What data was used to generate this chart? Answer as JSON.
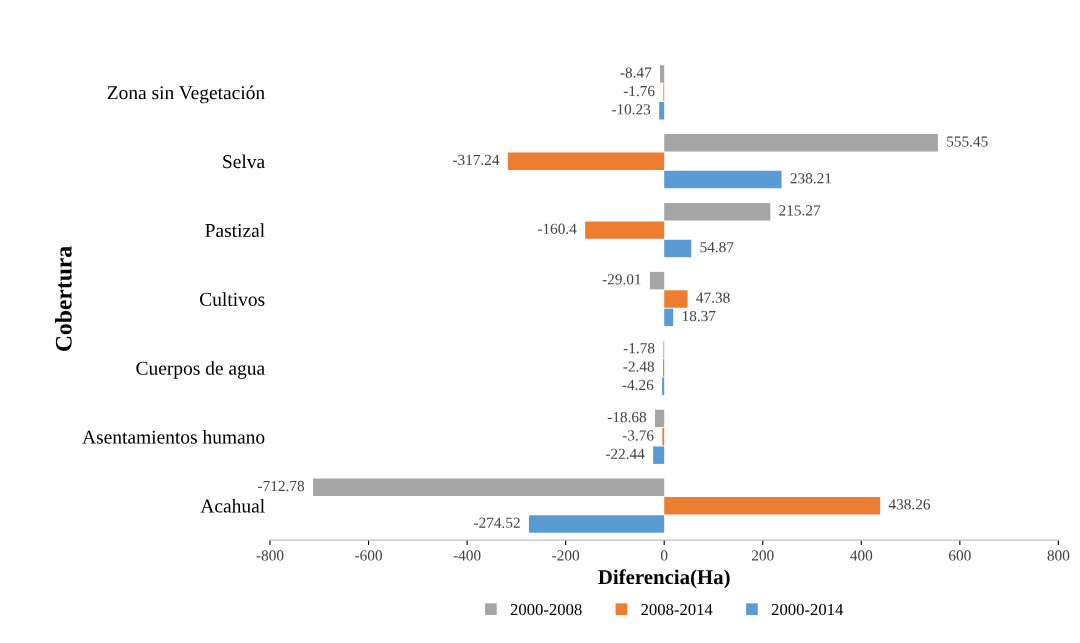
{
  "chart_data": {
    "type": "bar",
    "orientation": "horizontal",
    "xlabel": "Diferencia(Ha)",
    "ylabel": "Cobertura",
    "categories": [
      "Zona sin Vegetación",
      "Selva",
      "Pastizal",
      "Cultivos",
      "Cuerpos de agua",
      "Asentamientos humano",
      "Acahual"
    ],
    "series": [
      {
        "name": "2000-2008",
        "color": "#a5a5a5",
        "values": [
          -8.47,
          555.45,
          215.27,
          -29.01,
          -1.78,
          -18.68,
          -712.78
        ]
      },
      {
        "name": "2008-2014",
        "color": "#ed7d31",
        "values": [
          -1.76,
          -317.24,
          -160.4,
          47.38,
          -2.48,
          -3.76,
          438.26
        ]
      },
      {
        "name": "2000-2014",
        "color": "#5b9bd5",
        "values": [
          -10.23,
          238.21,
          54.87,
          18.37,
          -4.26,
          -22.44,
          -274.52
        ]
      }
    ],
    "xlim": [
      -800,
      800
    ],
    "xticks": [
      -800,
      -600,
      -400,
      -200,
      0,
      200,
      400,
      600,
      800
    ],
    "data_labels": true,
    "grid": false,
    "legend": "bottom"
  }
}
